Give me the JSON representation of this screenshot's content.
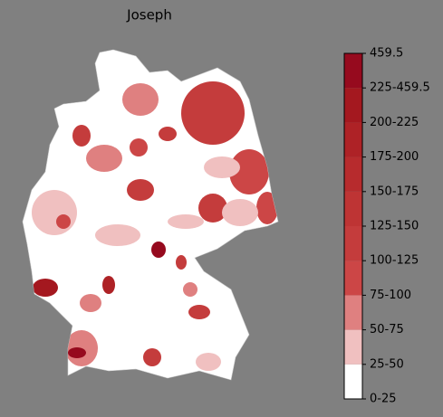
{
  "title": "Joseph",
  "colorbar": {
    "labels": [
      "0-25",
      "25-50",
      "50-75",
      "75-100",
      "100-125",
      "125-150",
      "150-175",
      "175-200",
      "200-225",
      "225-459.5",
      "459.5"
    ],
    "colors": [
      "#ffffff",
      "#f0c0c0",
      "#df8080",
      "#cc4646",
      "#c43c3c",
      "#be3434",
      "#b72b2d",
      "#ae2226",
      "#a4181f",
      "#960a1e"
    ]
  }
}
